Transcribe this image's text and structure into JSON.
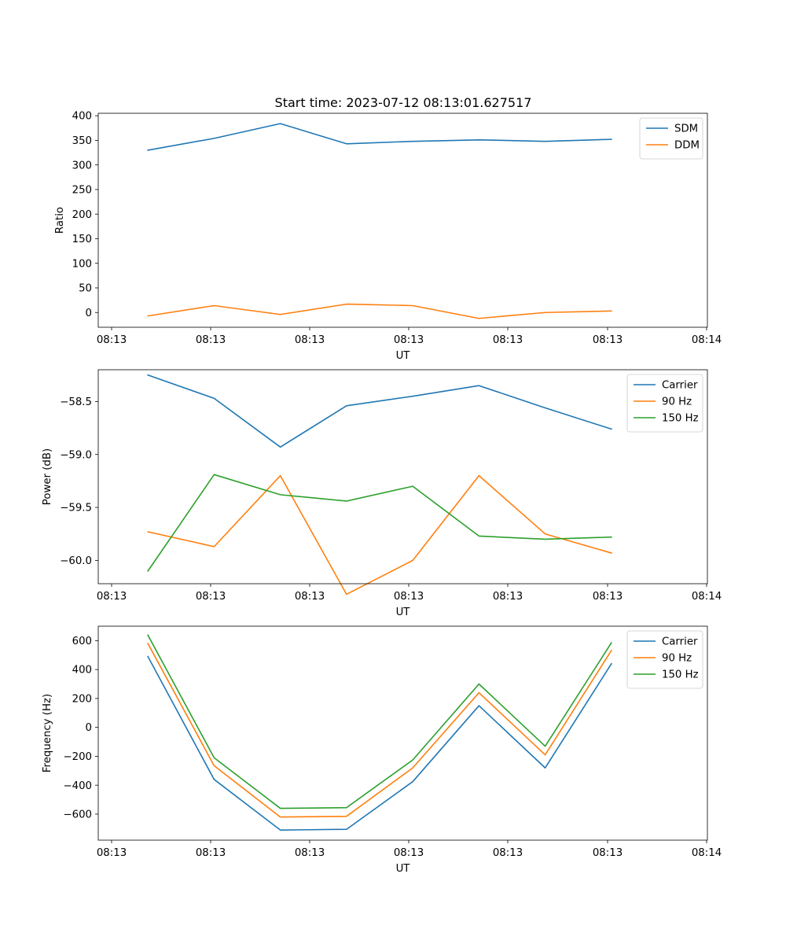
{
  "chart_data": [
    {
      "type": "line",
      "title": "Start time: 2023-07-12 08:13:01.627517",
      "xlabel": "UT",
      "ylabel": "Ratio",
      "x_tick_labels": [
        "08:13",
        "08:13",
        "08:13",
        "08:13",
        "08:13",
        "08:13",
        "08:14"
      ],
      "y_ticks": [
        0,
        50,
        100,
        150,
        200,
        250,
        300,
        350,
        400
      ],
      "y_tick_labels": [
        "0",
        "50",
        "100",
        "150",
        "200",
        "250",
        "300",
        "350",
        "400"
      ],
      "xlim": [
        -0.75,
        8.45
      ],
      "ylim": [
        -30,
        405
      ],
      "legend_location": "upper right",
      "x": [
        0,
        1,
        2,
        3,
        4,
        5,
        6,
        7
      ],
      "series": [
        {
          "name": "SDM",
          "color": "#1f77b4",
          "values": [
            330,
            354,
            384,
            343,
            348,
            351,
            348,
            352
          ]
        },
        {
          "name": "DDM",
          "color": "#ff7f0e",
          "values": [
            -7,
            14,
            -4,
            17,
            14,
            -12,
            0,
            3
          ]
        }
      ]
    },
    {
      "type": "line",
      "title": "",
      "xlabel": "UT",
      "ylabel": "Power (dB)",
      "x_tick_labels": [
        "08:13",
        "08:13",
        "08:13",
        "08:13",
        "08:13",
        "08:13",
        "08:14"
      ],
      "y_ticks": [
        -60.0,
        -59.5,
        -59.0,
        -58.5
      ],
      "y_tick_labels": [
        "−60.0",
        "−59.5",
        "−59.0",
        "−58.5"
      ],
      "xlim": [
        -0.75,
        8.45
      ],
      "ylim": [
        -60.22,
        -58.2
      ],
      "legend_location": "upper right",
      "x": [
        0,
        1,
        2,
        3,
        4,
        5,
        6,
        7
      ],
      "series": [
        {
          "name": "Carrier",
          "color": "#1f77b4",
          "values": [
            -58.25,
            -58.47,
            -58.93,
            -58.54,
            -58.45,
            -58.35,
            -58.56,
            -58.76
          ]
        },
        {
          "name": "90 Hz",
          "color": "#ff7f0e",
          "values": [
            -59.73,
            -59.87,
            -59.2,
            -60.32,
            -60.0,
            -59.2,
            -59.75,
            -59.93
          ]
        },
        {
          "name": "150 Hz",
          "color": "#2ca02c",
          "values": [
            -60.1,
            -59.19,
            -59.38,
            -59.44,
            -59.3,
            -59.77,
            -59.8,
            -59.78
          ]
        }
      ]
    },
    {
      "type": "line",
      "title": "",
      "xlabel": "UT",
      "ylabel": "Frequency (Hz)",
      "x_tick_labels": [
        "08:13",
        "08:13",
        "08:13",
        "08:13",
        "08:13",
        "08:13",
        "08:14"
      ],
      "y_ticks": [
        -600,
        -400,
        -200,
        0,
        200,
        400,
        600
      ],
      "y_tick_labels": [
        "−600",
        "−400",
        "−200",
        "0",
        "200",
        "400",
        "600"
      ],
      "xlim": [
        -0.75,
        8.45
      ],
      "ylim": [
        -780,
        700
      ],
      "legend_location": "upper right",
      "x": [
        0,
        1,
        2,
        3,
        4,
        5,
        6,
        7
      ],
      "series": [
        {
          "name": "Carrier",
          "color": "#1f77b4",
          "values": [
            490,
            -360,
            -710,
            -705,
            -375,
            150,
            -280,
            440
          ]
        },
        {
          "name": "90 Hz",
          "color": "#ff7f0e",
          "values": [
            580,
            -265,
            -620,
            -615,
            -280,
            240,
            -190,
            532
          ]
        },
        {
          "name": "150 Hz",
          "color": "#2ca02c",
          "values": [
            638,
            -210,
            -560,
            -555,
            -225,
            300,
            -130,
            585
          ]
        }
      ]
    }
  ]
}
